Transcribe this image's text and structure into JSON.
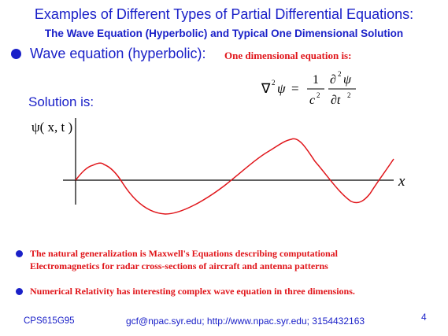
{
  "slide": {
    "title": "Examples of Different Types of Partial Differential Equations:",
    "subtitle": "The Wave Equation (Hyperbolic) and Typical One Dimensional Solution",
    "wave_label": "Wave equation (hyperbolic):",
    "wave_note": "One dimensional equation is:",
    "solution_label": "Solution is:",
    "equation": {
      "lhs_nabla": "∇",
      "lhs_sup": "2",
      "lhs_psi": "ψ",
      "equals": "=",
      "frac1_num": "1",
      "frac1_den": "c",
      "frac1_den_sup": "2",
      "frac2_num": "∂",
      "frac2_num_sup": "2",
      "frac2_num_psi": "ψ",
      "frac2_den": "∂t",
      "frac2_den_sup": "2"
    },
    "plot": {
      "y_label": "ψ( x, t )",
      "x_label": "x"
    },
    "notes": [
      "The natural generalization is Maxwell's Equations describing computational",
      "Electromagnetics for radar cross-sections of aircraft and antenna patterns",
      "Numerical Relativity has interesting complex wave equation in three dimensions."
    ],
    "footer_left": "CPS615G95",
    "footer_center": "gcf@npac.syr.edu; http://www.npac.syr.edu; 3154432163",
    "page_number": "4"
  },
  "colors": {
    "blue": "#1a20c8",
    "red": "#e0151a",
    "black": "#000000"
  }
}
